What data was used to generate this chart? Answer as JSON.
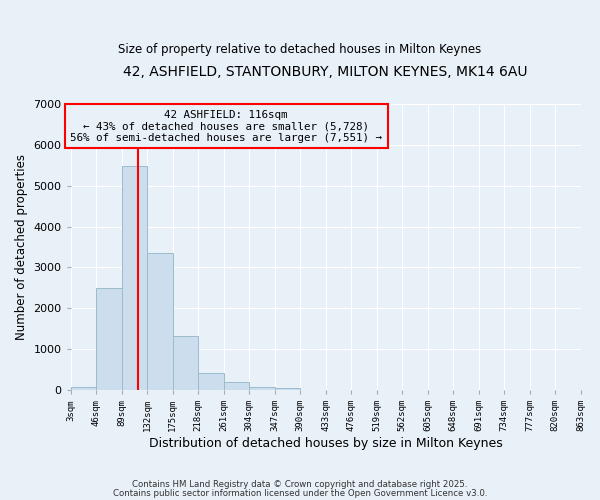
{
  "title": "42, ASHFIELD, STANTONBURY, MILTON KEYNES, MK14 6AU",
  "subtitle": "Size of property relative to detached houses in Milton Keynes",
  "xlabel": "Distribution of detached houses by size in Milton Keynes",
  "ylabel": "Number of detached properties",
  "bar_color": "#ccdded",
  "bar_edge_color": "#9bbccc",
  "background_color": "#e8f0f8",
  "grid_color": "#ffffff",
  "annotation_line_color": "red",
  "annotation_box_color": "red",
  "annotation_text_line1": "42 ASHFIELD: 116sqm",
  "annotation_text_line2": "← 43% of detached houses are smaller (5,728)",
  "annotation_text_line3": "56% of semi-detached houses are larger (7,551) →",
  "property_size": 116,
  "bin_edges": [
    3,
    46,
    89,
    132,
    175,
    218,
    261,
    304,
    347,
    390,
    433,
    476,
    519,
    562,
    605,
    648,
    691,
    734,
    777,
    820,
    863
  ],
  "bin_counts": [
    80,
    2500,
    5480,
    3350,
    1330,
    420,
    200,
    80,
    50,
    0,
    0,
    0,
    0,
    0,
    0,
    0,
    0,
    0,
    0,
    0
  ],
  "ylim": [
    0,
    7000
  ],
  "yticks": [
    0,
    1000,
    2000,
    3000,
    4000,
    5000,
    6000,
    7000
  ],
  "tick_labels": [
    "3sqm",
    "46sqm",
    "89sqm",
    "132sqm",
    "175sqm",
    "218sqm",
    "261sqm",
    "304sqm",
    "347sqm",
    "390sqm",
    "433sqm",
    "476sqm",
    "519sqm",
    "562sqm",
    "605sqm",
    "648sqm",
    "691sqm",
    "734sqm",
    "777sqm",
    "820sqm",
    "863sqm"
  ],
  "footer1": "Contains HM Land Registry data © Crown copyright and database right 2025.",
  "footer2": "Contains public sector information licensed under the Open Government Licence v3.0."
}
